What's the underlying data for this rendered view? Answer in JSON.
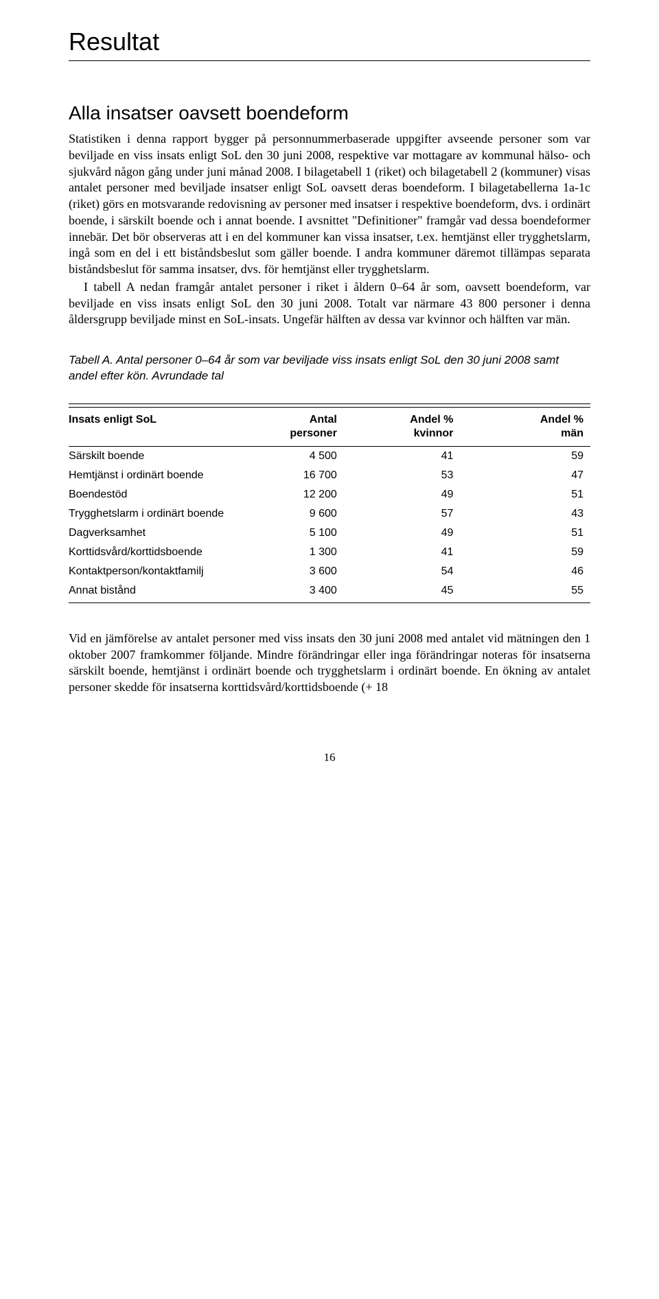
{
  "section_title": "Resultat",
  "subheading": "Alla insatser oavsett boendeform",
  "para1": "Statistiken i denna rapport bygger på personnummerbaserade uppgifter avseende personer som var beviljade en viss insats enligt SoL den 30 juni 2008, respektive var mottagare av kommunal hälso- och sjukvård någon gång under juni månad 2008. I bilagetabell 1 (riket) och bilagetabell 2 (kommuner) visas antalet personer med beviljade insatser enligt SoL oavsett deras boendeform. I bilagetabellerna 1a-1c (riket) görs en motsvarande redovisning av personer med insatser i respektive boendeform, dvs. i ordinärt boende, i särskilt boende och i annat boende. I avsnittet \"Definitioner\" framgår vad dessa boendeformer innebär. Det bör observeras att i en del kommuner kan vissa insatser, t.ex. hemtjänst eller trygghetslarm, ingå som en del i ett biståndsbeslut som gäller boende. I andra kommuner däremot tillämpas separata biståndsbeslut för samma insatser, dvs. för hemtjänst eller trygghetslarm.",
  "para2": "I tabell A nedan framgår antalet personer i riket i åldern 0–64 år som, oavsett boendeform, var beviljade en viss insats enligt SoL den 30 juni 2008. Totalt var närmare 43 800 personer i denna åldersgrupp beviljade minst en SoL-insats. Ungefär hälften av dessa var kvinnor och hälften var män.",
  "table_caption": "Tabell A. Antal personer 0–64 år som var beviljade viss insats enligt SoL den 30 juni 2008 samt andel efter kön. Avrundade tal",
  "table": {
    "headers": {
      "col1": "Insats enligt SoL",
      "col2_l1": "Antal",
      "col2_l2": "personer",
      "col3_l1": "Andel %",
      "col3_l2": "kvinnor",
      "col4_l1": "Andel %",
      "col4_l2": "män"
    },
    "rows": [
      {
        "label": "Särskilt boende",
        "antal": "4 500",
        "kvinnor": "41",
        "man": "59"
      },
      {
        "label": "Hemtjänst i ordinärt boende",
        "antal": "16 700",
        "kvinnor": "53",
        "man": "47"
      },
      {
        "label": "Boendestöd",
        "antal": "12 200",
        "kvinnor": "49",
        "man": "51"
      },
      {
        "label": "Trygghetslarm i ordinärt boende",
        "antal": "9 600",
        "kvinnor": "57",
        "man": "43"
      },
      {
        "label": "Dagverksamhet",
        "antal": "5 100",
        "kvinnor": "49",
        "man": "51"
      },
      {
        "label": "Korttidsvård/korttidsboende",
        "antal": "1 300",
        "kvinnor": "41",
        "man": "59"
      },
      {
        "label": "Kontaktperson/kontaktfamilj",
        "antal": "3 600",
        "kvinnor": "54",
        "man": "46"
      },
      {
        "label": "Annat bistånd",
        "antal": "3 400",
        "kvinnor": "45",
        "man": "55"
      }
    ]
  },
  "para3": "Vid en jämförelse av antalet personer med viss insats den 30 juni 2008 med antalet vid mätningen den 1 oktober 2007 framkommer följande. Mindre förändringar eller inga förändringar noteras för insatserna särskilt boende, hemtjänst i ordinärt boende och trygghetslarm i ordinärt boende. En ökning av antalet personer skedde för insatserna korttidsvård/korttidsboende (+ 18",
  "page_number": "16"
}
